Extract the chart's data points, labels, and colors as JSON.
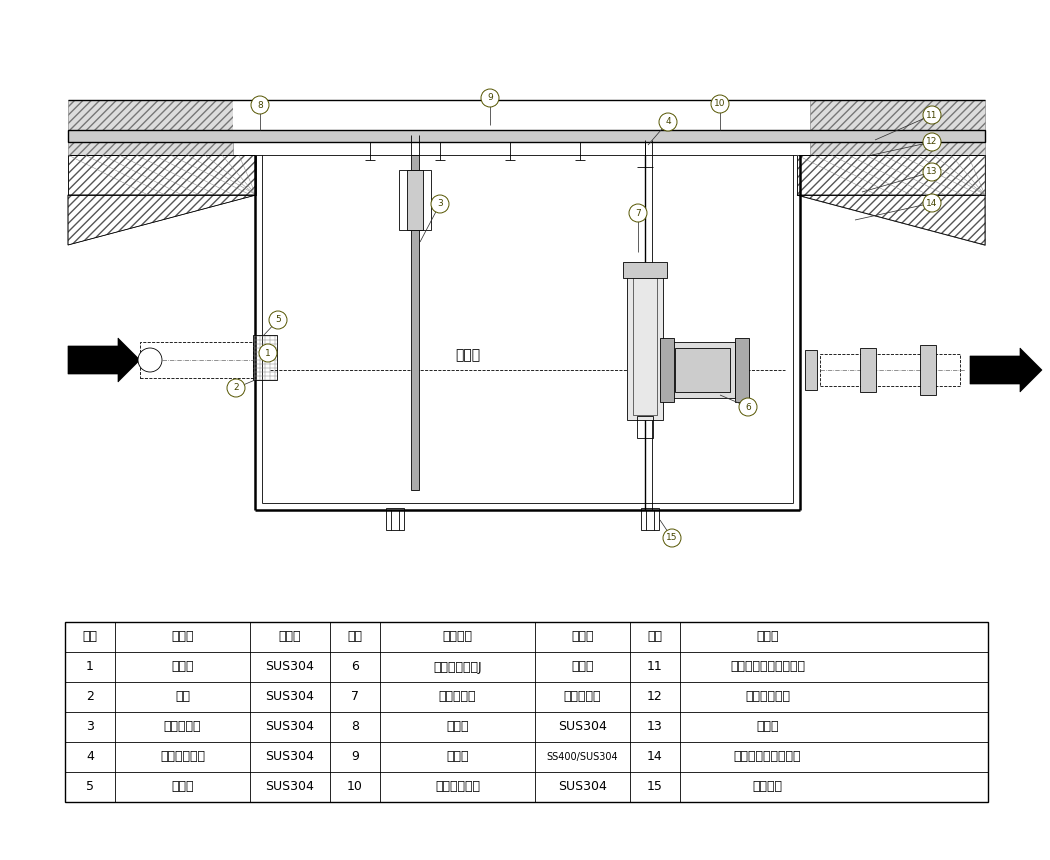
{
  "bg_color": "#ffffff",
  "line_color": "#000000",
  "table_header": [
    "部番",
    "品　名",
    "材　質",
    "部番",
    "品　　名",
    "材　質",
    "部番",
    "品　名"
  ],
  "table_rows": [
    [
      "1",
      "本　体",
      "SUS304",
      "6",
      "フレキシブルJ",
      "ゴ　ム",
      "11",
      "増し打ちコンクリート"
    ],
    [
      "2",
      "受笹",
      "SUS304",
      "7",
      "トラップ管",
      "Ｐ　Ｖ　Ｃ",
      "12",
      "保護モルタル"
    ],
    [
      "3",
      "スライド板",
      "SUS304",
      "8",
      "受　枠",
      "SUS304",
      "13",
      "防水層"
    ],
    [
      "4",
      "防水止フック",
      "SUS304",
      "9",
      "ふ　た",
      "SS400/SUS304",
      "14",
      "スラブコンクリート"
    ],
    [
      "5",
      "流入管",
      "SUS304",
      "10",
      "固定用ピース",
      "SUS304",
      "15",
      "吊り金具"
    ]
  ]
}
